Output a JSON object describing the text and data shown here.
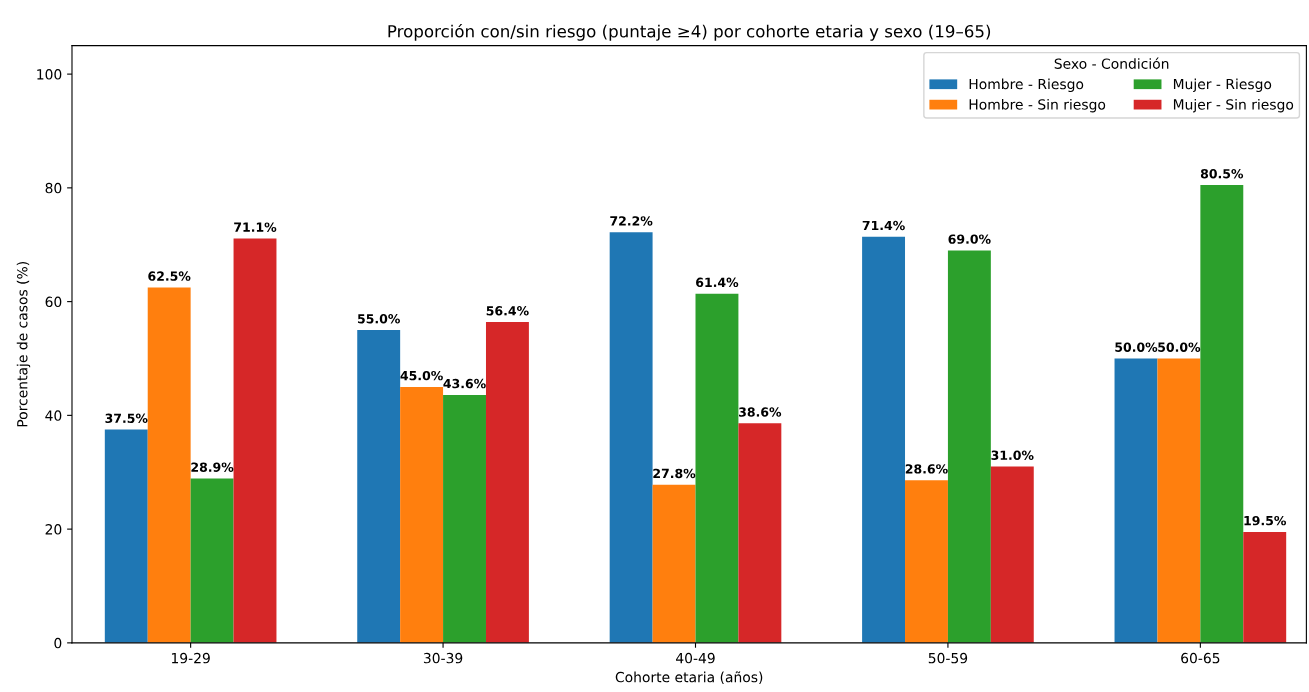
{
  "chart_data": {
    "type": "bar",
    "title": "Proporción con/sin riesgo (puntaje ≥4) por cohorte etaria y sexo (19–65)",
    "xlabel": "Cohorte etaria (años)",
    "ylabel": "Porcentaje de casos (%)",
    "legend_title": "Sexo - Condición",
    "categories": [
      "19-29",
      "30-39",
      "40-49",
      "50-59",
      "60-65"
    ],
    "series": [
      {
        "name": "Hombre - Riesgo",
        "color": "#1f77b4",
        "values": [
          37.5,
          55.0,
          72.2,
          71.4,
          50.0
        ],
        "value_labels": [
          "37.5%",
          "55.0%",
          "72.2%",
          "71.4%",
          "50.0%"
        ]
      },
      {
        "name": "Hombre - Sin riesgo",
        "color": "#ff7f0e",
        "values": [
          62.5,
          45.0,
          27.8,
          28.6,
          50.0
        ],
        "value_labels": [
          "62.5%",
          "45.0%",
          "27.8%",
          "28.6%",
          "50.0%"
        ]
      },
      {
        "name": "Mujer - Riesgo",
        "color": "#2ca02c",
        "values": [
          28.9,
          43.6,
          61.4,
          69.0,
          80.5
        ],
        "value_labels": [
          "28.9%",
          "43.6%",
          "61.4%",
          "69.0%",
          "80.5%"
        ]
      },
      {
        "name": "Mujer - Sin riesgo",
        "color": "#d62728",
        "values": [
          71.1,
          56.4,
          38.6,
          31.0,
          19.5
        ],
        "value_labels": [
          "71.1%",
          "56.4%",
          "38.6%",
          "31.0%",
          "19.5%"
        ]
      }
    ],
    "ylim": [
      0,
      105
    ],
    "yticks": [
      0,
      20,
      40,
      60,
      80,
      100
    ],
    "grid": false,
    "legend": "top right"
  }
}
